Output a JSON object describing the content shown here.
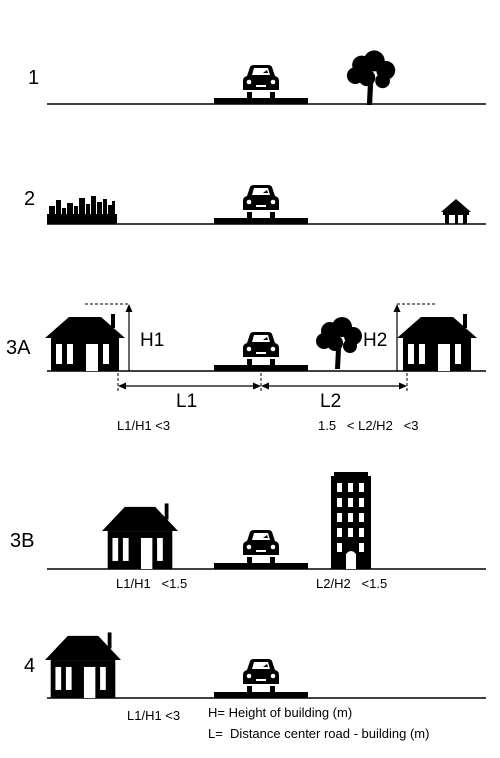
{
  "rows": {
    "r1": {
      "label": "1"
    },
    "r2": {
      "label": "2"
    },
    "r3a": {
      "label": "3A",
      "h1": "H1",
      "h2": "H2",
      "l1": "L1",
      "l2": "L2",
      "ratio1": "L1/H1 <3",
      "ratio2": "1.5   < L2/H2   <3"
    },
    "r3b": {
      "label": "3B",
      "ratio1": "L1/H1   <1.5",
      "ratio2": "L2/H2   <1.5"
    },
    "r4": {
      "label": "4",
      "ratio1": "L1/H1 <3"
    }
  },
  "legend": {
    "h": "H= Height of building (m)",
    "l": "L=  Distance center road - building (m)"
  }
}
